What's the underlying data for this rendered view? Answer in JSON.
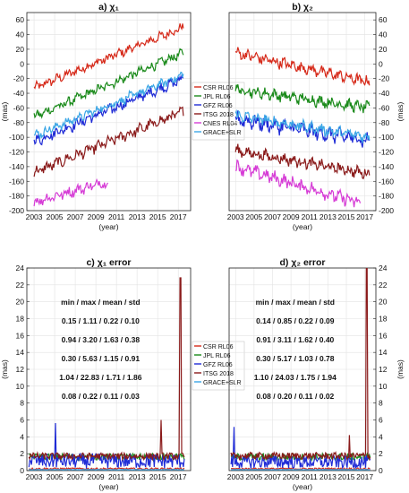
{
  "chart_data": [
    {
      "type": "line",
      "title": "a) χ₁",
      "xlabel": "(year)",
      "ylabel": "(mas)",
      "xlim": [
        2002.3,
        2018.2
      ],
      "ylim": [
        -200,
        70
      ],
      "xticks": [
        2003,
        2005,
        2007,
        2009,
        2011,
        2013,
        2015,
        2017
      ],
      "yticks": [
        -200,
        -180,
        -160,
        -140,
        -120,
        -100,
        -80,
        -60,
        -40,
        -20,
        0,
        20,
        40,
        60
      ],
      "grid": true,
      "legend": "right-middle",
      "series": [
        {
          "name": "CSR RL06",
          "color": "#d62a1a",
          "x": [
            2003,
            2017.5
          ],
          "y": [
            -33,
            50
          ],
          "noise": 5
        },
        {
          "name": "JPL RL06",
          "color": "#1a8a1a",
          "x": [
            2003,
            2017.5
          ],
          "y": [
            -72,
            15
          ],
          "noise": 5
        },
        {
          "name": "GFZ RL06",
          "color": "#1f2bd6",
          "x": [
            2003,
            2017.5
          ],
          "y": [
            -106,
            -20
          ],
          "noise": 6
        },
        {
          "name": "ITSG 2018",
          "color": "#8a1a1a",
          "x": [
            2003,
            2017.5
          ],
          "y": [
            -148,
            -65
          ],
          "noise": 6
        },
        {
          "name": "CNES RL04",
          "color": "#d63cd6",
          "x": [
            2003,
            2010.2
          ],
          "y": [
            -188,
            -160
          ],
          "noise": 6
        },
        {
          "name": "GRACE+SLR",
          "color": "#3aa6e6",
          "x": [
            2003,
            2017.5
          ],
          "y": [
            -98,
            -15
          ],
          "noise": 5
        }
      ]
    },
    {
      "type": "line",
      "title": "b) χ₂",
      "xlabel": "(year)",
      "ylabel": "(mas)",
      "xlim": [
        2002.3,
        2018.2
      ],
      "ylim": [
        -200,
        70
      ],
      "xticks": [
        2003,
        2005,
        2007,
        2009,
        2011,
        2013,
        2015,
        2017
      ],
      "yticks": [
        -200,
        -180,
        -160,
        -140,
        -120,
        -100,
        -80,
        -60,
        -40,
        -20,
        0,
        20,
        40,
        60
      ],
      "grid": true,
      "series": [
        {
          "name": "CSR RL06",
          "color": "#d62a1a",
          "x": [
            2003,
            2017.5
          ],
          "y": [
            15,
            -25
          ],
          "noise": 6
        },
        {
          "name": "JPL RL06",
          "color": "#1a8a1a",
          "x": [
            2003,
            2017.5
          ],
          "y": [
            -35,
            -60
          ],
          "noise": 6
        },
        {
          "name": "GFZ RL06",
          "color": "#1f2bd6",
          "x": [
            2003,
            2017.5
          ],
          "y": [
            -75,
            -105
          ],
          "noise": 8
        },
        {
          "name": "ITSG 2018",
          "color": "#8a1a1a",
          "x": [
            2003,
            2017.5
          ],
          "y": [
            -118,
            -150
          ],
          "noise": 6
        },
        {
          "name": "CNES RL04",
          "color": "#d63cd6",
          "x": [
            2003,
            2016.5
          ],
          "y": [
            -140,
            -190
          ],
          "noise": 7
        },
        {
          "name": "GRACE+SLR",
          "color": "#3aa6e6",
          "x": [
            2003,
            2017.5
          ],
          "y": [
            -70,
            -100
          ],
          "noise": 6
        }
      ]
    },
    {
      "type": "line",
      "title": "c) χ₁ error",
      "xlabel": "(year)",
      "ylabel": "(mas)",
      "xlim": [
        2002.3,
        2018.2
      ],
      "ylim": [
        0,
        24
      ],
      "xticks": [
        2003,
        2005,
        2007,
        2009,
        2011,
        2013,
        2015,
        2017
      ],
      "yticks": [
        0,
        2,
        4,
        6,
        8,
        10,
        12,
        14,
        16,
        18,
        20,
        22,
        24
      ],
      "grid": true,
      "legend": "right-middle",
      "stats_header": "min / max / mean / std",
      "stats": [
        {
          "text": "0.15 / 1.11 / 0.22 / 0.10",
          "color": "#d62a1a"
        },
        {
          "text": "0.94 / 3.20 / 1.63 / 0.38",
          "color": "#1a8a1a"
        },
        {
          "text": "0.30 / 5.63 / 1.15 / 0.91",
          "color": "#1f2bd6"
        },
        {
          "text": "1.04 / 22.83 / 1.71 / 1.86",
          "color": "#8a1a1a"
        },
        {
          "text": "0.08 / 0.22 / 0.11 / 0.03",
          "color": "#3aa6e6"
        }
      ],
      "series": [
        {
          "name": "CSR RL06",
          "color": "#d62a1a",
          "base": 0.22,
          "amp": 0.1
        },
        {
          "name": "JPL RL06",
          "color": "#1a8a1a",
          "base": 1.63,
          "amp": 0.38
        },
        {
          "name": "GFZ RL06",
          "color": "#1f2bd6",
          "base": 1.15,
          "amp": 0.9
        },
        {
          "name": "ITSG 2018",
          "color": "#8a1a1a",
          "base": 1.71,
          "amp": 0.4
        },
        {
          "name": "GRACE+SLR",
          "color": "#3aa6e6",
          "base": 0.11,
          "amp": 0.03
        }
      ],
      "peaks": [
        {
          "series": "ITSG 2018",
          "x": 2017.2,
          "y": 22.83
        },
        {
          "series": "ITSG 2018",
          "x": 2015.3,
          "y": 6.0
        },
        {
          "series": "GFZ RL06",
          "x": 2005.1,
          "y": 5.63
        }
      ]
    },
    {
      "type": "line",
      "title": "d) χ₂ error",
      "xlabel": "(year)",
      "ylabel": "(mas)",
      "xlim": [
        2002.3,
        2018.2
      ],
      "ylim": [
        0,
        24
      ],
      "xticks": [
        2003,
        2005,
        2007,
        2009,
        2011,
        2013,
        2015,
        2017
      ],
      "yticks": [
        0,
        2,
        4,
        6,
        8,
        10,
        12,
        14,
        16,
        18,
        20,
        22,
        24
      ],
      "grid": true,
      "stats_header": "min / max / mean / std",
      "stats": [
        {
          "text": "0.14 / 0.85 / 0.22 / 0.09",
          "color": "#d62a1a"
        },
        {
          "text": "0.91 / 3.11 / 1.62 / 0.40",
          "color": "#1a8a1a"
        },
        {
          "text": "0.30 / 5.17 / 1.03 / 0.78",
          "color": "#1f2bd6"
        },
        {
          "text": "1.10 / 24.03 / 1.75 / 1.94",
          "color": "#8a1a1a"
        },
        {
          "text": "0.08 / 0.20 / 0.11 / 0.02",
          "color": "#3aa6e6"
        }
      ],
      "series": [
        {
          "name": "CSR RL06",
          "color": "#d62a1a",
          "base": 0.22,
          "amp": 0.09
        },
        {
          "name": "JPL RL06",
          "color": "#1a8a1a",
          "base": 1.62,
          "amp": 0.4
        },
        {
          "name": "GFZ RL06",
          "color": "#1f2bd6",
          "base": 1.03,
          "amp": 0.78
        },
        {
          "name": "ITSG 2018",
          "color": "#8a1a1a",
          "base": 1.75,
          "amp": 0.4
        },
        {
          "name": "GRACE+SLR",
          "color": "#3aa6e6",
          "base": 0.11,
          "amp": 0.02
        }
      ],
      "peaks": [
        {
          "series": "ITSG 2018",
          "x": 2017.2,
          "y": 24.03
        },
        {
          "series": "ITSG 2018",
          "x": 2015.3,
          "y": 4.2
        },
        {
          "series": "GFZ RL06",
          "x": 2002.8,
          "y": 5.17
        }
      ]
    }
  ]
}
